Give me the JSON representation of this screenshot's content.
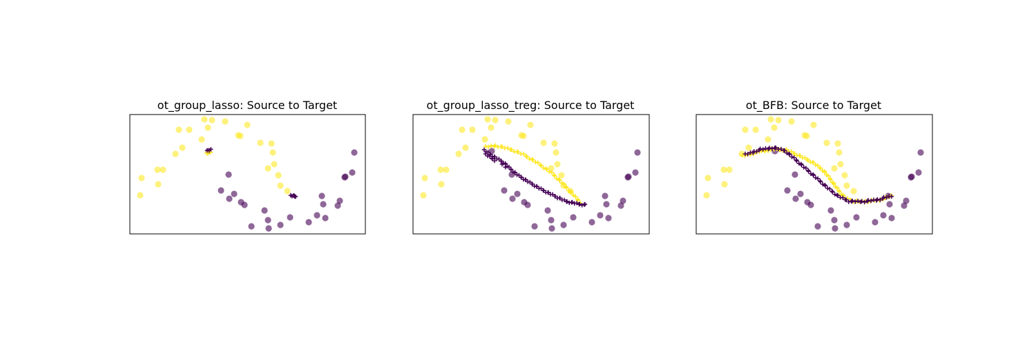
{
  "chart_data": [
    {
      "type": "scatter",
      "title": "ot_group_lasso: Source to Target",
      "xlabel": "",
      "ylabel": "",
      "xlim": [
        0,
        340
      ],
      "ylim": [
        -172,
        0
      ],
      "axis_ticks": "none",
      "grid": false,
      "colors": {
        "class0": "#440154",
        "class1": "#fde725"
      },
      "target_points": [
        {
          "x": 15,
          "y": -117,
          "class": 1
        },
        {
          "x": 17,
          "y": -92,
          "class": 1
        },
        {
          "x": 41,
          "y": -101,
          "class": 1
        },
        {
          "x": 40,
          "y": -80,
          "class": 1
        },
        {
          "x": 48,
          "y": -80,
          "class": 1
        },
        {
          "x": 66,
          "y": -57,
          "class": 1
        },
        {
          "x": 76,
          "y": -48,
          "class": 1
        },
        {
          "x": 71,
          "y": -22,
          "class": 1
        },
        {
          "x": 86,
          "y": -22,
          "class": 1
        },
        {
          "x": 104,
          "y": -36,
          "class": 1
        },
        {
          "x": 108,
          "y": -7,
          "class": 1
        },
        {
          "x": 113,
          "y": -19,
          "class": 1
        },
        {
          "x": 119,
          "y": -8,
          "class": 1
        },
        {
          "x": 138,
          "y": -10,
          "class": 1
        },
        {
          "x": 157,
          "y": -30,
          "class": 1
        },
        {
          "x": 160,
          "y": -31,
          "class": 1
        },
        {
          "x": 170,
          "y": -15,
          "class": 1
        },
        {
          "x": 189,
          "y": -41,
          "class": 1
        },
        {
          "x": 205,
          "y": -42,
          "class": 1
        },
        {
          "x": 207,
          "y": -55,
          "class": 1
        },
        {
          "x": 209,
          "y": -72,
          "class": 1
        },
        {
          "x": 200,
          "y": -78,
          "class": 1
        },
        {
          "x": 215,
          "y": -88,
          "class": 1
        },
        {
          "x": 218,
          "y": -103,
          "class": 1
        },
        {
          "x": 228,
          "y": -111,
          "class": 1
        },
        {
          "x": 114,
          "y": -53,
          "class": 0
        },
        {
          "x": 143,
          "y": -87,
          "class": 0
        },
        {
          "x": 132,
          "y": -110,
          "class": 0
        },
        {
          "x": 144,
          "y": -122,
          "class": 0
        },
        {
          "x": 151,
          "y": -115,
          "class": 0
        },
        {
          "x": 161,
          "y": -127,
          "class": 0
        },
        {
          "x": 166,
          "y": -131,
          "class": 0
        },
        {
          "x": 176,
          "y": -162,
          "class": 0
        },
        {
          "x": 195,
          "y": -139,
          "class": 0
        },
        {
          "x": 200,
          "y": -153,
          "class": 0
        },
        {
          "x": 201,
          "y": -165,
          "class": 0
        },
        {
          "x": 218,
          "y": -160,
          "class": 0
        },
        {
          "x": 232,
          "y": -149,
          "class": 0
        },
        {
          "x": 259,
          "y": -156,
          "class": 0
        },
        {
          "x": 271,
          "y": -146,
          "class": 0
        },
        {
          "x": 278,
          "y": -118,
          "class": 0
        },
        {
          "x": 280,
          "y": -130,
          "class": 0
        },
        {
          "x": 283,
          "y": -150,
          "class": 0
        },
        {
          "x": 301,
          "y": -132,
          "class": 0
        },
        {
          "x": 304,
          "y": -125,
          "class": 0
        },
        {
          "x": 311,
          "y": -91,
          "class": 0
        },
        {
          "x": 312,
          "y": -90,
          "class": 0
        },
        {
          "x": 322,
          "y": -84,
          "class": 0
        },
        {
          "x": 325,
          "y": -55,
          "class": 0
        }
      ],
      "mapped_curves": [
        {
          "class": 1,
          "points": [
            [
              112,
              -57
            ],
            [
              116,
              -54
            ]
          ],
          "count": 4
        },
        {
          "class": 0,
          "points": [
            [
              113,
              -53
            ],
            [
              117,
              -51
            ]
          ],
          "count": 3
        },
        {
          "class": 0,
          "points": [
            [
              234,
              -118
            ],
            [
              240,
              -118
            ]
          ],
          "count": 6
        }
      ]
    },
    {
      "type": "scatter",
      "title": "ot_group_lasso_treg: Source to Target",
      "xlabel": "",
      "ylabel": "",
      "xlim": [
        0,
        340
      ],
      "ylim": [
        -172,
        0
      ],
      "axis_ticks": "none",
      "grid": false,
      "colors": {
        "class0": "#440154",
        "class1": "#fde725"
      },
      "target_points": [
        {
          "x": 15,
          "y": -117,
          "class": 1
        },
        {
          "x": 17,
          "y": -92,
          "class": 1
        },
        {
          "x": 41,
          "y": -101,
          "class": 1
        },
        {
          "x": 40,
          "y": -80,
          "class": 1
        },
        {
          "x": 48,
          "y": -80,
          "class": 1
        },
        {
          "x": 66,
          "y": -57,
          "class": 1
        },
        {
          "x": 76,
          "y": -48,
          "class": 1
        },
        {
          "x": 71,
          "y": -22,
          "class": 1
        },
        {
          "x": 86,
          "y": -22,
          "class": 1
        },
        {
          "x": 104,
          "y": -36,
          "class": 1
        },
        {
          "x": 108,
          "y": -7,
          "class": 1
        },
        {
          "x": 113,
          "y": -19,
          "class": 1
        },
        {
          "x": 119,
          "y": -8,
          "class": 1
        },
        {
          "x": 138,
          "y": -10,
          "class": 1
        },
        {
          "x": 157,
          "y": -30,
          "class": 1
        },
        {
          "x": 160,
          "y": -31,
          "class": 1
        },
        {
          "x": 170,
          "y": -15,
          "class": 1
        },
        {
          "x": 189,
          "y": -41,
          "class": 1
        },
        {
          "x": 205,
          "y": -42,
          "class": 1
        },
        {
          "x": 207,
          "y": -55,
          "class": 1
        },
        {
          "x": 209,
          "y": -72,
          "class": 1
        },
        {
          "x": 200,
          "y": -78,
          "class": 1
        },
        {
          "x": 215,
          "y": -88,
          "class": 1
        },
        {
          "x": 218,
          "y": -103,
          "class": 1
        },
        {
          "x": 228,
          "y": -111,
          "class": 1
        },
        {
          "x": 114,
          "y": -53,
          "class": 0
        },
        {
          "x": 143,
          "y": -87,
          "class": 0
        },
        {
          "x": 132,
          "y": -110,
          "class": 0
        },
        {
          "x": 144,
          "y": -122,
          "class": 0
        },
        {
          "x": 151,
          "y": -115,
          "class": 0
        },
        {
          "x": 161,
          "y": -127,
          "class": 0
        },
        {
          "x": 166,
          "y": -131,
          "class": 0
        },
        {
          "x": 176,
          "y": -162,
          "class": 0
        },
        {
          "x": 195,
          "y": -139,
          "class": 0
        },
        {
          "x": 200,
          "y": -153,
          "class": 0
        },
        {
          "x": 201,
          "y": -165,
          "class": 0
        },
        {
          "x": 218,
          "y": -160,
          "class": 0
        },
        {
          "x": 232,
          "y": -149,
          "class": 0
        },
        {
          "x": 259,
          "y": -156,
          "class": 0
        },
        {
          "x": 271,
          "y": -146,
          "class": 0
        },
        {
          "x": 278,
          "y": -118,
          "class": 0
        },
        {
          "x": 280,
          "y": -130,
          "class": 0
        },
        {
          "x": 283,
          "y": -150,
          "class": 0
        },
        {
          "x": 301,
          "y": -132,
          "class": 0
        },
        {
          "x": 304,
          "y": -125,
          "class": 0
        },
        {
          "x": 311,
          "y": -91,
          "class": 0
        },
        {
          "x": 312,
          "y": -90,
          "class": 0
        },
        {
          "x": 322,
          "y": -84,
          "class": 0
        },
        {
          "x": 325,
          "y": -55,
          "class": 0
        }
      ],
      "mapped_curves": [
        {
          "class": 1,
          "points": [
            [
              106,
              -47
            ],
            [
              120,
              -45
            ],
            [
              140,
              -50
            ],
            [
              160,
              -58
            ],
            [
              180,
              -70
            ],
            [
              200,
              -84
            ],
            [
              215,
              -98
            ],
            [
              228,
              -112
            ],
            [
              242,
              -127
            ]
          ],
          "count": 48
        },
        {
          "class": 0,
          "points": [
            [
              104,
              -52
            ],
            [
              112,
              -58
            ],
            [
              122,
              -64
            ],
            [
              132,
              -70
            ],
            [
              140,
              -78
            ],
            [
              152,
              -88
            ],
            [
              168,
              -98
            ],
            [
              185,
              -108
            ],
            [
              205,
              -118
            ],
            [
              222,
              -126
            ],
            [
              242,
              -130
            ],
            [
              250,
              -131
            ]
          ],
          "count": 64
        },
        {
          "class": 0,
          "points": [
            [
              106,
              -58
            ],
            [
              112,
              -62
            ],
            [
              118,
              -66
            ]
          ],
          "count": 6
        },
        {
          "class": 0,
          "points": [
            [
              130,
              -73
            ],
            [
              134,
              -76
            ]
          ],
          "count": 2
        }
      ]
    },
    {
      "type": "scatter",
      "title": "ot_BFB: Source to Target",
      "xlabel": "",
      "ylabel": "",
      "xlim": [
        0,
        340
      ],
      "ylim": [
        -172,
        0
      ],
      "axis_ticks": "none",
      "grid": false,
      "colors": {
        "class0": "#440154",
        "class1": "#fde725"
      },
      "target_points": [
        {
          "x": 15,
          "y": -117,
          "class": 1
        },
        {
          "x": 17,
          "y": -92,
          "class": 1
        },
        {
          "x": 41,
          "y": -101,
          "class": 1
        },
        {
          "x": 40,
          "y": -80,
          "class": 1
        },
        {
          "x": 48,
          "y": -80,
          "class": 1
        },
        {
          "x": 66,
          "y": -57,
          "class": 1
        },
        {
          "x": 76,
          "y": -48,
          "class": 1
        },
        {
          "x": 71,
          "y": -22,
          "class": 1
        },
        {
          "x": 86,
          "y": -22,
          "class": 1
        },
        {
          "x": 104,
          "y": -36,
          "class": 1
        },
        {
          "x": 108,
          "y": -7,
          "class": 1
        },
        {
          "x": 113,
          "y": -19,
          "class": 1
        },
        {
          "x": 119,
          "y": -8,
          "class": 1
        },
        {
          "x": 138,
          "y": -10,
          "class": 1
        },
        {
          "x": 157,
          "y": -30,
          "class": 1
        },
        {
          "x": 160,
          "y": -31,
          "class": 1
        },
        {
          "x": 170,
          "y": -15,
          "class": 1
        },
        {
          "x": 189,
          "y": -41,
          "class": 1
        },
        {
          "x": 205,
          "y": -42,
          "class": 1
        },
        {
          "x": 207,
          "y": -55,
          "class": 1
        },
        {
          "x": 209,
          "y": -72,
          "class": 1
        },
        {
          "x": 200,
          "y": -78,
          "class": 1
        },
        {
          "x": 215,
          "y": -88,
          "class": 1
        },
        {
          "x": 218,
          "y": -103,
          "class": 1
        },
        {
          "x": 228,
          "y": -111,
          "class": 1
        },
        {
          "x": 114,
          "y": -53,
          "class": 0
        },
        {
          "x": 143,
          "y": -87,
          "class": 0
        },
        {
          "x": 132,
          "y": -110,
          "class": 0
        },
        {
          "x": 144,
          "y": -122,
          "class": 0
        },
        {
          "x": 151,
          "y": -115,
          "class": 0
        },
        {
          "x": 161,
          "y": -127,
          "class": 0
        },
        {
          "x": 166,
          "y": -131,
          "class": 0
        },
        {
          "x": 176,
          "y": -162,
          "class": 0
        },
        {
          "x": 195,
          "y": -139,
          "class": 0
        },
        {
          "x": 200,
          "y": -153,
          "class": 0
        },
        {
          "x": 201,
          "y": -165,
          "class": 0
        },
        {
          "x": 218,
          "y": -160,
          "class": 0
        },
        {
          "x": 232,
          "y": -149,
          "class": 0
        },
        {
          "x": 259,
          "y": -156,
          "class": 0
        },
        {
          "x": 271,
          "y": -146,
          "class": 0
        },
        {
          "x": 278,
          "y": -118,
          "class": 0
        },
        {
          "x": 280,
          "y": -130,
          "class": 0
        },
        {
          "x": 283,
          "y": -150,
          "class": 0
        },
        {
          "x": 301,
          "y": -132,
          "class": 0
        },
        {
          "x": 304,
          "y": -125,
          "class": 0
        },
        {
          "x": 311,
          "y": -91,
          "class": 0
        },
        {
          "x": 312,
          "y": -90,
          "class": 0
        },
        {
          "x": 322,
          "y": -84,
          "class": 0
        },
        {
          "x": 325,
          "y": -55,
          "class": 0
        }
      ],
      "mapped_curves": [
        {
          "class": 1,
          "points": [
            [
              68,
              -60
            ],
            [
              90,
              -54
            ],
            [
              112,
              -50
            ],
            [
              132,
              -52
            ],
            [
              150,
              -60
            ],
            [
              170,
              -70
            ],
            [
              185,
              -82
            ],
            [
              196,
              -96
            ],
            [
              206,
              -110
            ],
            [
              216,
              -121
            ],
            [
              228,
              -126
            ],
            [
              245,
              -126
            ],
            [
              265,
              -124
            ],
            [
              282,
              -118
            ]
          ],
          "count": 80
        },
        {
          "class": 0,
          "points": [
            [
              72,
              -58
            ],
            [
              92,
              -51
            ],
            [
              112,
              -48
            ],
            [
              128,
              -52
            ],
            [
              140,
              -62
            ],
            [
              156,
              -76
            ],
            [
              172,
              -90
            ],
            [
              190,
              -106
            ],
            [
              205,
              -118
            ],
            [
              222,
              -126
            ],
            [
              245,
              -126
            ],
            [
              265,
              -123
            ],
            [
              282,
              -118
            ]
          ],
          "count": 74
        }
      ]
    }
  ]
}
